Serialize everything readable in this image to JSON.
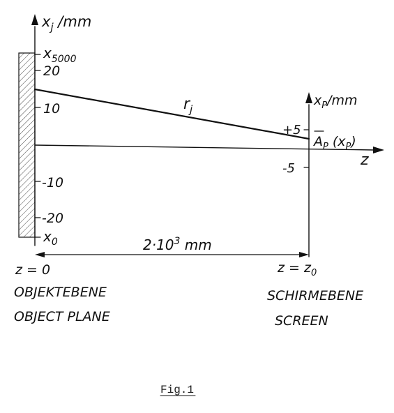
{
  "axis_left": {
    "label_main": "x",
    "label_sub": "j",
    "label_unit": " /mm"
  },
  "axis_right": {
    "label_main": "x",
    "label_sub": "P",
    "label_unit": "/mm"
  },
  "axis_z": {
    "label": "z"
  },
  "left_ticks": [
    {
      "value": "20"
    },
    {
      "value": "10"
    },
    {
      "value": "-10"
    },
    {
      "value": "-20"
    }
  ],
  "right_ticks": [
    {
      "value": "+5"
    },
    {
      "value": "-5"
    }
  ],
  "labels": {
    "x5000_main": "x",
    "x5000_sub": "5000",
    "x0_main": "x",
    "x0_sub": "0",
    "r_main": "r",
    "r_sub": "j",
    "ap_main": "A",
    "ap_sub": "P",
    "ap_arg_open": " (x",
    "ap_arg_sub": "P",
    "ap_arg_close": ")",
    "distance_base": "2·10",
    "distance_exp": "3",
    "distance_unit": " mm",
    "z0_left": "z = ",
    "z0_value": "0",
    "zz0_left": "z = z",
    "zz0_sub": "0"
  },
  "plane_left": {
    "line1": "OBJEKTEBENE",
    "line2": "OBJECT PLANE"
  },
  "plane_right": {
    "line1": "SCHIRMEBENE",
    "line2": "SCREEN"
  },
  "caption": "Fig.1"
}
